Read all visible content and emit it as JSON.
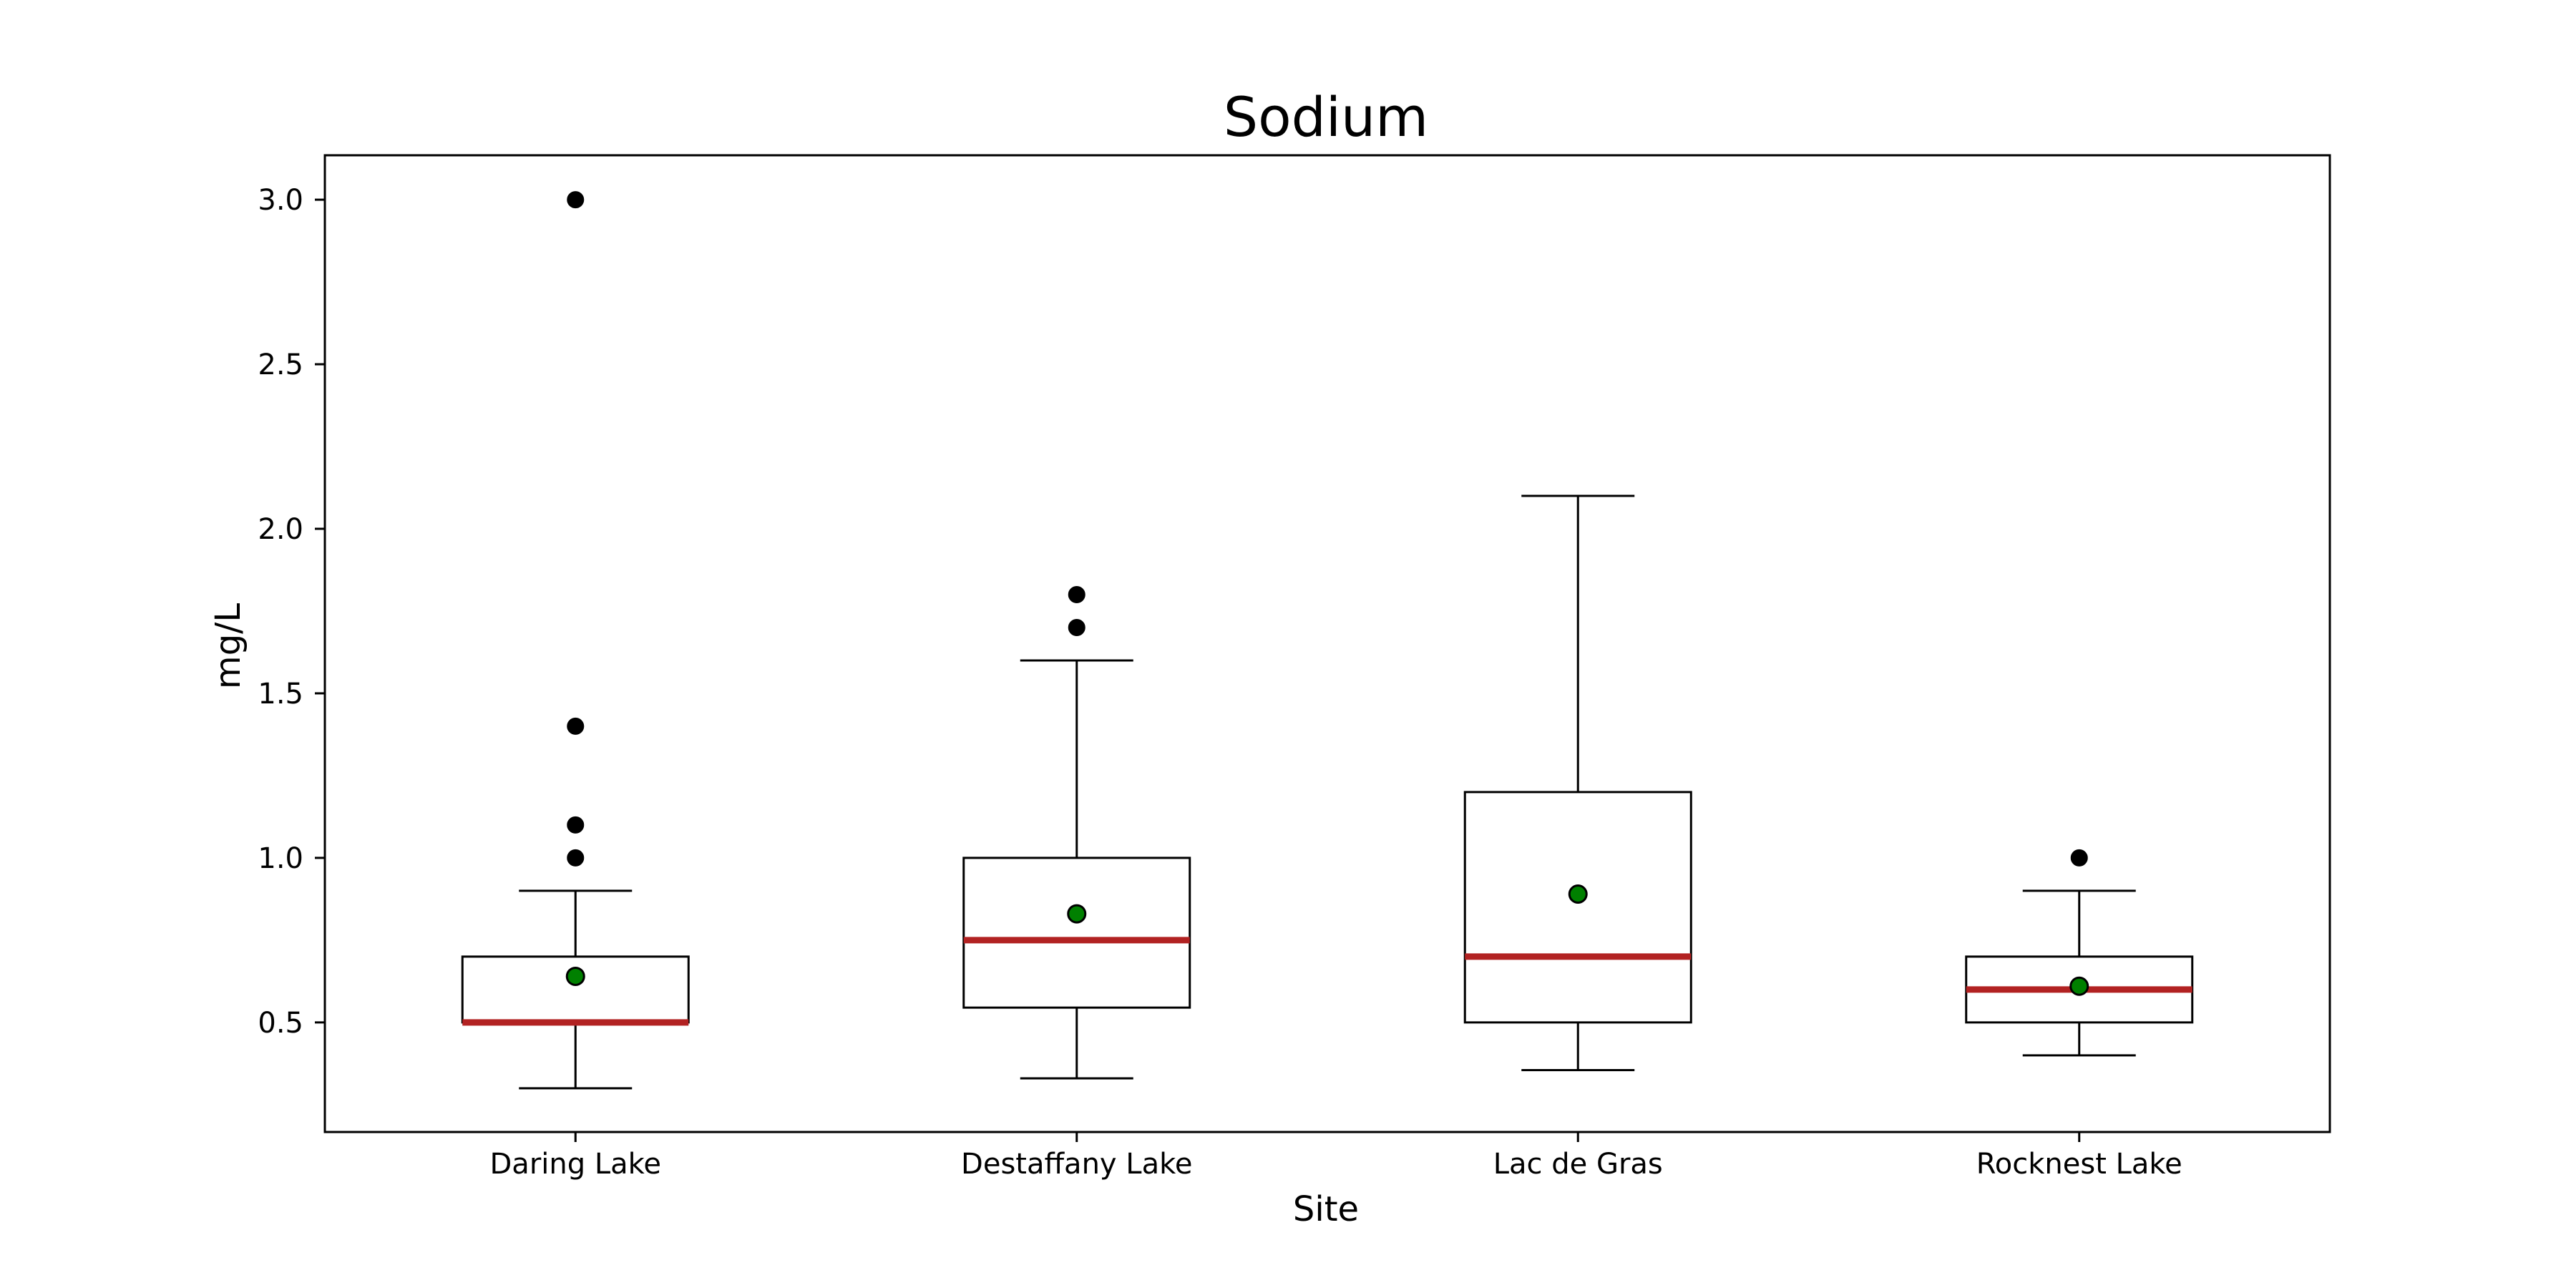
{
  "chart_data": {
    "type": "box",
    "title": "Sodium",
    "xlabel": "Site",
    "ylabel": "mg/L",
    "ylim": [
      0.167,
      3.135
    ],
    "yticks": [
      0.5,
      1.0,
      1.5,
      2.0,
      2.5,
      3.0
    ],
    "ytick_labels": [
      "0.5",
      "1.0",
      "1.5",
      "2.0",
      "2.5",
      "3.0"
    ],
    "grid": false,
    "legend": "none",
    "colors": {
      "box": "#000000",
      "median": "#b22222",
      "mean": "#008000",
      "outlier": "#000000"
    },
    "categories": [
      "Daring Lake",
      "Destaffany Lake",
      "Lac de Gras",
      "Rocknest Lake"
    ],
    "boxes": [
      {
        "category": "Daring Lake",
        "whisker_low": 0.3,
        "q1": 0.5,
        "median": 0.5,
        "q3": 0.7,
        "whisker_high": 0.9,
        "mean": 0.64,
        "outliers": [
          1.0,
          1.1,
          1.4,
          3.0
        ]
      },
      {
        "category": "Destaffany Lake",
        "whisker_low": 0.33,
        "q1": 0.545,
        "median": 0.75,
        "q3": 1.0,
        "whisker_high": 1.6,
        "mean": 0.83,
        "outliers": [
          1.7,
          1.8
        ]
      },
      {
        "category": "Lac de Gras",
        "whisker_low": 0.355,
        "q1": 0.5,
        "median": 0.7,
        "q3": 1.2,
        "whisker_high": 2.1,
        "mean": 0.89,
        "outliers": []
      },
      {
        "category": "Rocknest Lake",
        "whisker_low": 0.4,
        "q1": 0.5,
        "median": 0.6,
        "q3": 0.7,
        "whisker_high": 0.9,
        "mean": 0.61,
        "outliers": [
          1.0
        ]
      }
    ]
  }
}
